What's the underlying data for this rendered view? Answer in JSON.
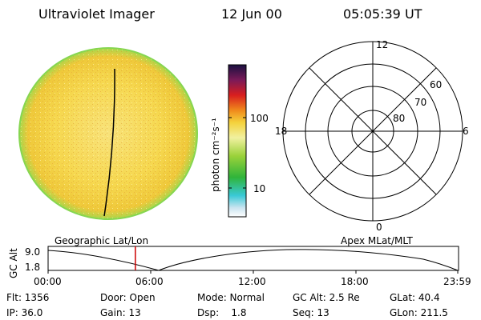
{
  "header": {
    "title": "Ultraviolet Imager",
    "date": "12 Jun 00",
    "time": "05:05:39 UT"
  },
  "colorbar": {
    "label": "photon cm⁻²s⁻¹",
    "ticks": [
      "100",
      "10"
    ]
  },
  "polar": {
    "mlt_labels": [
      "12",
      "18",
      "6",
      "0"
    ],
    "lat_labels": [
      "60",
      "70",
      "80"
    ]
  },
  "track": {
    "left_label": "Geographic Lat/Lon",
    "right_label": "Apex MLat/MLT",
    "ylabel": "GC Alt",
    "yticks": [
      "9.0",
      "1.8"
    ],
    "xticks": [
      "00:00",
      "06:00",
      "12:00",
      "18:00",
      "23:59"
    ],
    "current_time_fraction": 0.213
  },
  "info": {
    "row1": [
      "Flt: 1356",
      "Door: Open",
      "Mode: Normal",
      "GC Alt: 2.5 Re",
      "GLat:  40.4"
    ],
    "row2": [
      "IP: 36.0",
      "Gain: 13",
      "Dsp:    1.8",
      "Seq: 13",
      "GLon: 211.5"
    ]
  },
  "colors": {
    "image_base": "#f5d24a",
    "image_edge": "#7fd24a",
    "marker": "#cc0000"
  }
}
